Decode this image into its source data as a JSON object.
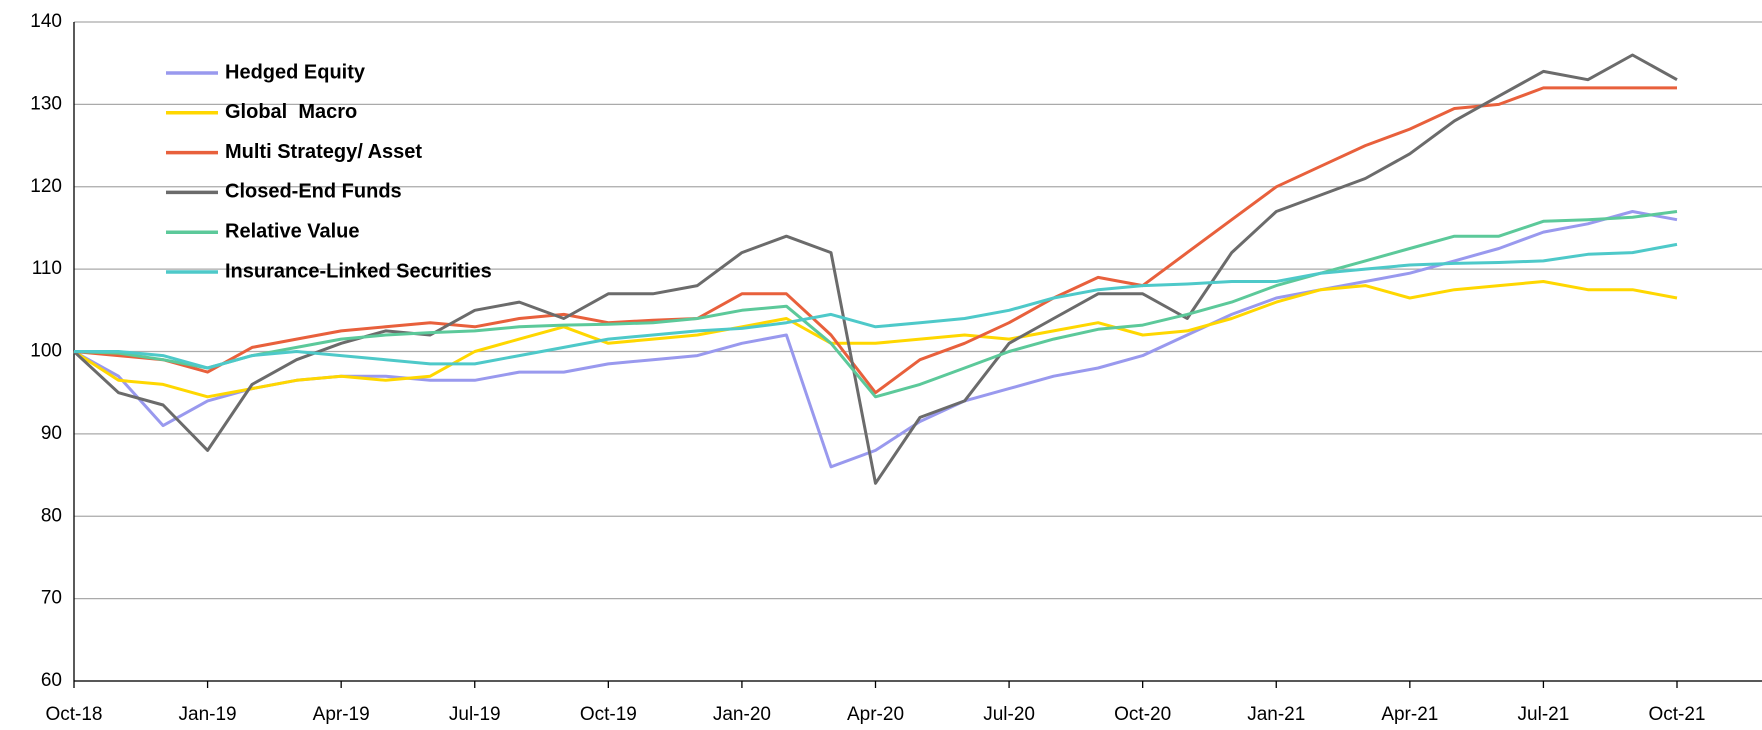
{
  "chart_data": {
    "type": "line",
    "categories": [
      "Oct-18",
      null,
      null,
      "Jan-19",
      null,
      null,
      "Apr-19",
      null,
      null,
      "Jul-19",
      null,
      null,
      "Oct-19",
      null,
      null,
      "Jan-20",
      null,
      null,
      "Apr-20",
      null,
      null,
      "Jul-20",
      null,
      null,
      "Oct-20",
      null,
      null,
      "Jan-21",
      null,
      null,
      "Apr-21",
      null,
      null,
      "Jul-21",
      null,
      null,
      "Oct-21"
    ],
    "series": [
      {
        "name": "Hedged Equity",
        "color": "#9999ee",
        "values": [
          100,
          97,
          91,
          94,
          95.5,
          96.5,
          97,
          97,
          96.5,
          96.5,
          97.5,
          97.5,
          98.5,
          99,
          99.5,
          101,
          102,
          86,
          88,
          91.5,
          94,
          95.5,
          97,
          98,
          99.5,
          102,
          104.5,
          106.5,
          107.5,
          108.5,
          109.5,
          111,
          112.5,
          114.5,
          115.5,
          117,
          116
        ]
      },
      {
        "name": "Global  Macro",
        "color": "#ffd700",
        "values": [
          100,
          96.5,
          96,
          94.5,
          95.5,
          96.5,
          97,
          96.5,
          97,
          100,
          101.5,
          103,
          101,
          101.5,
          102,
          103,
          104,
          101,
          101,
          101.5,
          102,
          101.5,
          102.5,
          103.5,
          102,
          102.5,
          104,
          106,
          107.5,
          108,
          106.5,
          107.5,
          108,
          108.5,
          107.5,
          107.5,
          106.5
        ]
      },
      {
        "name": "Multi Strategy/ Asset",
        "color": "#e8603c",
        "values": [
          100,
          99.5,
          99,
          97.5,
          100.5,
          101.5,
          102.5,
          103,
          103.5,
          103,
          104,
          104.5,
          103.5,
          103.8,
          104,
          107,
          107,
          102,
          95,
          99,
          101,
          103.5,
          106.5,
          109,
          108,
          112,
          116,
          120,
          122.5,
          125,
          127,
          129.5,
          130,
          132,
          132,
          132,
          132
        ]
      },
      {
        "name": "Closed-End Funds",
        "color": "#6b6b6b",
        "values": [
          100,
          95,
          93.5,
          88,
          96,
          99,
          101,
          102.5,
          102,
          105,
          106,
          104,
          107,
          107,
          108,
          112,
          114,
          112,
          84,
          92,
          94,
          101,
          104,
          107,
          107,
          104,
          112,
          117,
          119,
          121,
          124,
          128,
          131,
          134,
          133,
          136,
          133
        ]
      },
      {
        "name": "Relative Value",
        "color": "#5cc99a",
        "values": [
          100,
          99.8,
          99,
          98,
          99.5,
          100.5,
          101.5,
          102,
          102.3,
          102.5,
          103,
          103.2,
          103.3,
          103.5,
          104,
          105,
          105.5,
          101,
          94.5,
          96,
          98,
          100,
          101.5,
          102.7,
          103.2,
          104.5,
          106,
          108,
          109.5,
          111,
          112.5,
          114,
          114,
          115.8,
          116,
          116.3,
          117
        ]
      },
      {
        "name": "Insurance-Linked Securities",
        "color": "#4ec9c9",
        "values": [
          100,
          100,
          99.5,
          98,
          99.5,
          100,
          99.5,
          99,
          98.5,
          98.5,
          99.5,
          100.5,
          101.5,
          102,
          102.5,
          102.8,
          103.5,
          104.5,
          103,
          103.5,
          104,
          105,
          106.5,
          107.5,
          108,
          108.2,
          108.5,
          108.5,
          109.5,
          110,
          110.5,
          110.7,
          110.8,
          111,
          111.8,
          112,
          113
        ]
      }
    ],
    "ylim": [
      60,
      140
    ],
    "yticks": [
      60,
      70,
      80,
      90,
      100,
      110,
      120,
      130,
      140
    ],
    "grid": true,
    "legend": "upper left"
  }
}
